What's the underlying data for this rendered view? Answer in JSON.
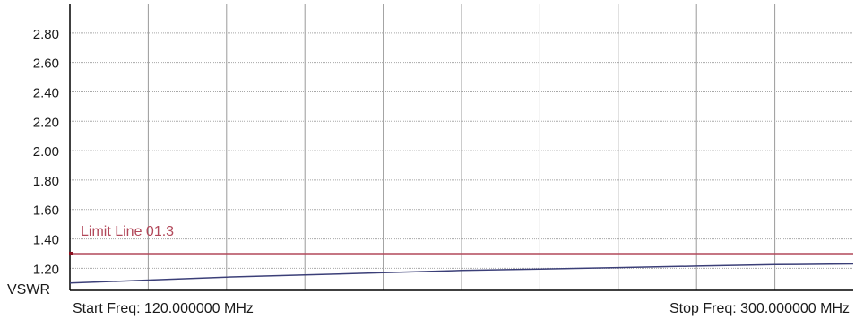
{
  "colors": {
    "background": "#ffffff",
    "axis": "#000000",
    "grid_major": "#9a9a9a",
    "grid_minor": "#a8a8a8",
    "trace": "#3b3f78",
    "limit_line": "#b2485a",
    "limit_marker": "#8b1020",
    "text": "#1a1a1a"
  },
  "footer": {
    "start_freq_label": "Start Freq: 120.000000 MHz",
    "stop_freq_label": "Stop Freq: 300.000000 MHz"
  },
  "chart_data": {
    "type": "line",
    "ylabel": "VSWR",
    "xlabel": "",
    "title": "",
    "x_range_mhz": [
      120,
      300
    ],
    "ylim": [
      1.05,
      3.0
    ],
    "y_ticks": [
      1.2,
      1.4,
      1.6,
      1.8,
      2.0,
      2.2,
      2.4,
      2.6,
      2.8
    ],
    "y_tick_labels": [
      "1.20",
      "1.40",
      "1.60",
      "1.80",
      "2.00",
      "2.20",
      "2.40",
      "2.60",
      "2.80"
    ],
    "x_divisions": 10,
    "grid": true,
    "series": [
      {
        "x": [
          120,
          138,
          156,
          174,
          192,
          210,
          228,
          246,
          264,
          282,
          300
        ],
        "values": [
          1.1,
          1.12,
          1.14,
          1.155,
          1.17,
          1.185,
          1.195,
          1.205,
          1.215,
          1.225,
          1.23
        ]
      }
    ],
    "limit_line": {
      "label": "Limit Line 01.3",
      "value": 1.3
    }
  }
}
